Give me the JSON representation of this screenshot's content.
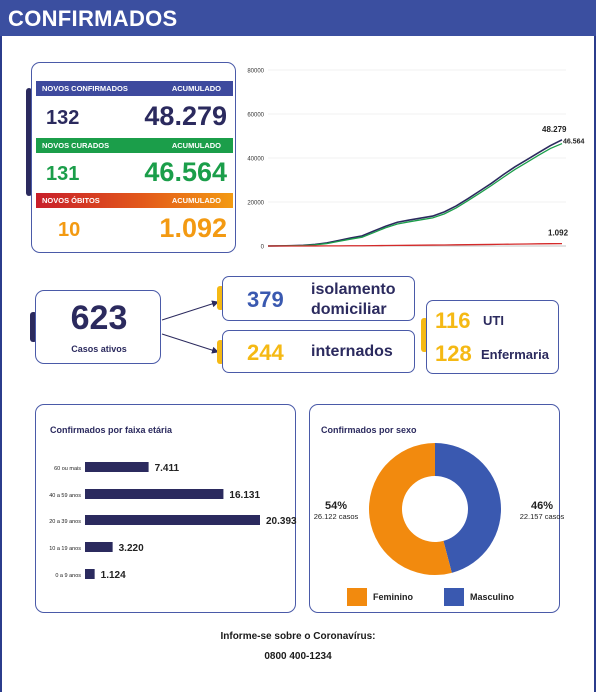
{
  "header": {
    "title": "CONFIRMADOS"
  },
  "stats": {
    "confirmed": {
      "label_new": "NOVOS CONFIRMADOS",
      "label_acc": "ACUMULADO",
      "new": "132",
      "acc": "48.279"
    },
    "cured": {
      "label_new": "NOVOS CURADOS",
      "label_acc": "ACUMULADO",
      "new": "131",
      "acc": "46.564"
    },
    "deaths": {
      "label_new": "NOVOS ÓBITOS",
      "label_acc": "ACUMULADO",
      "new": "10",
      "acc": "1.092"
    }
  },
  "active": {
    "count": "623",
    "label": "Casos ativos",
    "isolation": {
      "count": "379",
      "label_line1": "isolamento",
      "label_line2": "domiciliar"
    },
    "hospitalized": {
      "count": "244",
      "label": "internados"
    },
    "uti": {
      "count": "116",
      "label": "UTI"
    },
    "ward": {
      "count": "128",
      "label": "Enfermaria"
    }
  },
  "age_panel": {
    "title": "Confirmados por faixa etária"
  },
  "sex_panel": {
    "title": "Confirmados por sexo"
  },
  "footer": {
    "title": "Informe-se sobre o Coronavírus:",
    "phone": "0800 400-1234"
  },
  "colors": {
    "navy": "#2b2a5e",
    "blue": "#3e4a9e",
    "green": "#1b9e4a",
    "orange": "#f39a12",
    "yellow": "#f5b914",
    "red": "#d42a2a"
  },
  "chart_data": [
    {
      "type": "line",
      "ylim": [
        0,
        80000
      ],
      "yticks": [
        "0",
        "20000",
        "40000",
        "60000",
        "80000"
      ],
      "x": [
        0,
        1,
        2,
        3,
        4,
        5,
        6,
        7,
        8,
        9,
        10,
        11,
        12,
        13,
        14,
        15,
        16,
        17,
        18,
        19,
        20,
        21,
        22,
        23,
        24,
        25
      ],
      "series": [
        {
          "color": "#2b2a5e",
          "values": [
            0,
            60,
            150,
            300,
            700,
            1400,
            2500,
            3600,
            4600,
            6800,
            9000,
            10800,
            11800,
            12700,
            13600,
            15500,
            18200,
            21500,
            25000,
            28500,
            32400,
            36000,
            39200,
            42400,
            45600,
            48279
          ],
          "end_label": "48.279"
        },
        {
          "color": "#1b9e4a",
          "values": [
            0,
            40,
            100,
            200,
            500,
            1100,
            2100,
            3100,
            4000,
            6100,
            8300,
            10000,
            11000,
            11900,
            12800,
            14600,
            17300,
            20600,
            24000,
            27500,
            31200,
            34800,
            38000,
            41200,
            44300,
            46564
          ],
          "end_label": "46.564"
        },
        {
          "color": "#d42a2a",
          "values": [
            0,
            2,
            5,
            10,
            20,
            40,
            70,
            100,
            130,
            170,
            220,
            270,
            320,
            370,
            420,
            470,
            530,
            590,
            650,
            710,
            780,
            850,
            920,
            990,
            1050,
            1092
          ],
          "end_label": "1.092"
        }
      ]
    },
    {
      "type": "bar",
      "orientation": "horizontal",
      "categories": [
        "60 ou mais",
        "40 a 59 anos",
        "20 a 39 anos",
        "10 a 19 anos",
        "0 a 9 anos"
      ],
      "values": [
        7411,
        16131,
        20393,
        3220,
        1124
      ],
      "value_labels": [
        "7.411",
        "16.131",
        "20.393",
        "3.220",
        "1.124"
      ],
      "color": "#2b2a5e"
    },
    {
      "type": "pie",
      "slices": [
        {
          "name": "Masculino",
          "pct_label": "46%",
          "count_label": "22.157 casos",
          "value": 22157,
          "color": "#3a59b0"
        },
        {
          "name": "Feminino",
          "pct_label": "54%",
          "count_label": "26.122 casos",
          "value": 26122,
          "color": "#f28a0e"
        }
      ]
    }
  ]
}
